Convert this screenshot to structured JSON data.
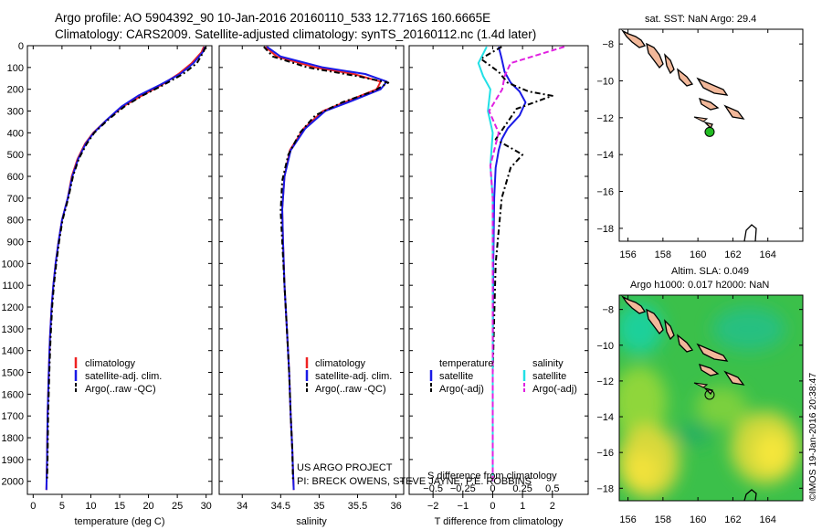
{
  "figure": {
    "title_line1": "Argo profile: AO 5904392_90 10-Jan-2016 20160110_533 12.7716S 160.6665E",
    "title_line2": "Climatology: CARS2009. Satellite-adjusted climatology: synTS_20160112.nc (1.4d later)",
    "credit_line1": "US ARGO PROJECT",
    "credit_line2": "PI: BRECK OWENS, STEVE JAYNE, P.E. ROBBINS",
    "watermark": "©IMOS 19-Jan-2016 20:38:47",
    "colors": {
      "climatology": "#ee2222",
      "satellite": "#1a1ae6",
      "argo": "#000000",
      "salinity_satellite": "#22e0e6",
      "salinity_argo": "#e020e0",
      "land": "#f2b89a",
      "marker": "#22bb22"
    }
  },
  "chart_data": [
    {
      "id": "temperature",
      "type": "line",
      "xlabel": "temperature (deg C)",
      "xlim": [
        -1,
        31
      ],
      "xticks": [
        0,
        5,
        10,
        15,
        20,
        25,
        30
      ],
      "ylim": [
        2060,
        0
      ],
      "yticks": [
        0,
        100,
        200,
        300,
        400,
        500,
        600,
        700,
        800,
        900,
        1000,
        1100,
        1200,
        1300,
        1400,
        1500,
        1600,
        1700,
        1800,
        1900,
        2000
      ],
      "legend": [
        "climatology",
        "satellite-adj. clim.",
        "Argo(..raw -QC)"
      ],
      "legend_position": "lower-middle",
      "series": [
        {
          "name": "climatology",
          "color": "#ee2222",
          "dash": "none",
          "x": [
            29.6,
            29.2,
            27.5,
            25.2,
            22.3,
            18.8,
            15.5,
            12.8,
            10.4,
            9.0,
            7.7,
            6.7,
            6.0,
            5.0,
            4.4,
            3.9,
            3.5,
            3.2,
            2.9,
            2.7,
            2.5,
            2.4,
            2.3
          ],
          "y": [
            5,
            30,
            80,
            130,
            180,
            230,
            280,
            340,
            400,
            450,
            520,
            600,
            700,
            800,
            900,
            1000,
            1100,
            1200,
            1350,
            1500,
            1700,
            1900,
            2040
          ]
        },
        {
          "name": "satellite-adj. clim.",
          "color": "#1a1ae6",
          "dash": "none",
          "x": [
            29.8,
            29.4,
            27.8,
            25.5,
            22.0,
            18.2,
            15.3,
            12.8,
            10.5,
            9.1,
            7.8,
            6.8,
            6.0,
            5.0,
            4.4,
            3.9,
            3.5,
            3.2,
            2.9,
            2.7,
            2.5,
            2.4,
            2.3
          ],
          "y": [
            5,
            30,
            80,
            130,
            180,
            230,
            280,
            340,
            400,
            450,
            520,
            600,
            700,
            800,
            900,
            1000,
            1100,
            1200,
            1350,
            1500,
            1700,
            1900,
            2040
          ]
        },
        {
          "name": "Argo(..raw -QC)",
          "color": "#000000",
          "dash": "6,3,2,3",
          "x": [
            29.9,
            29.5,
            28.4,
            26.0,
            22.6,
            18.9,
            15.8,
            13.0,
            10.6,
            9.3,
            7.9,
            6.9,
            6.1,
            5.1,
            4.5,
            4.0,
            3.6,
            3.3,
            3.0,
            2.8,
            2.6,
            2.5,
            2.4
          ],
          "y": [
            5,
            30,
            80,
            130,
            180,
            230,
            280,
            340,
            400,
            450,
            520,
            600,
            700,
            800,
            900,
            1000,
            1100,
            1200,
            1350,
            1500,
            1700,
            1900,
            2000
          ]
        }
      ]
    },
    {
      "id": "salinity",
      "type": "line",
      "xlabel": "salinity",
      "xlim": [
        33.7,
        36.1
      ],
      "xticks": [
        34,
        34.5,
        35,
        35.5,
        36
      ],
      "ylim": [
        2060,
        0
      ],
      "legend": [
        "climatology",
        "satellite-adj. clim.",
        "Argo(..raw -QC)"
      ],
      "legend_position": "lower-middle",
      "series": [
        {
          "name": "climatology",
          "color": "#ee2222",
          "dash": "none",
          "x": [
            34.3,
            34.45,
            34.95,
            35.45,
            35.8,
            35.75,
            35.4,
            35.05,
            34.8,
            34.62,
            34.55,
            34.52,
            34.53,
            34.55,
            34.58,
            34.61,
            34.63,
            34.65,
            34.66,
            34.67
          ],
          "y": [
            5,
            50,
            100,
            130,
            165,
            200,
            250,
            300,
            380,
            480,
            600,
            750,
            900,
            1100,
            1300,
            1500,
            1700,
            1850,
            1950,
            2040
          ]
        },
        {
          "name": "satellite-adj. clim.",
          "color": "#1a1ae6",
          "dash": "none",
          "x": [
            34.32,
            34.5,
            35.05,
            35.6,
            35.88,
            35.8,
            35.45,
            35.08,
            34.82,
            34.63,
            34.55,
            34.52,
            34.53,
            34.55,
            34.58,
            34.61,
            34.63,
            34.65,
            34.66,
            34.67
          ],
          "y": [
            5,
            50,
            100,
            130,
            165,
            200,
            250,
            300,
            380,
            480,
            600,
            750,
            900,
            1100,
            1300,
            1500,
            1700,
            1850,
            1950,
            2040
          ]
        },
        {
          "name": "Argo(..raw -QC)",
          "color": "#000000",
          "dash": "6,3,2,3",
          "x": [
            34.28,
            34.4,
            34.85,
            35.5,
            35.9,
            35.7,
            35.3,
            34.95,
            34.75,
            34.6,
            34.52,
            34.5,
            34.52,
            34.55,
            34.58,
            34.61,
            34.63,
            34.65,
            34.66
          ],
          "y": [
            5,
            50,
            100,
            140,
            170,
            210,
            260,
            320,
            400,
            500,
            620,
            760,
            900,
            1100,
            1300,
            1500,
            1700,
            1850,
            2000
          ]
        }
      ]
    },
    {
      "id": "difference",
      "type": "line",
      "xlabel": "T difference from climatology",
      "xlabel_top": "S difference from climatology",
      "xlim": [
        -2.8,
        3.2
      ],
      "xticks": [
        -2,
        -1,
        0,
        1,
        2
      ],
      "xlim_top": [
        -0.7,
        0.8
      ],
      "xticks_top": [
        -0.5,
        -0.25,
        0,
        0.25,
        0.5
      ],
      "ylim": [
        2060,
        0
      ],
      "legend_headers": [
        "temperature",
        "salinity"
      ],
      "legend": [
        "satellite",
        "Argo(-adj)",
        "satellite",
        "Argo(-adj)"
      ],
      "legend_position": "lower-middle",
      "series": [
        {
          "name": "temperature satellite",
          "color": "#1a1ae6",
          "dash": "none",
          "x": [
            0.2,
            0.3,
            0.4,
            0.6,
            0.9,
            1.1,
            0.9,
            0.5,
            0.3,
            0.2,
            0.1,
            0.05,
            0.02,
            0.0,
            0.0
          ],
          "y": [
            5,
            60,
            120,
            170,
            210,
            260,
            320,
            380,
            430,
            480,
            560,
            700,
            1000,
            1500,
            2000
          ]
        },
        {
          "name": "temperature Argo(-adj)",
          "color": "#000000",
          "dash": "6,3,2,3",
          "x": [
            0.3,
            -0.4,
            0.2,
            0.5,
            1.2,
            2.0,
            0.8,
            0.6,
            0.1,
            1.0,
            0.6,
            0.3,
            0.1,
            0.0,
            0.0
          ],
          "y": [
            5,
            60,
            120,
            170,
            210,
            230,
            290,
            330,
            430,
            500,
            560,
            700,
            1000,
            1500,
            2000
          ]
        },
        {
          "name": "salinity satellite",
          "color": "#22e0e6",
          "dash": "none",
          "x": [
            -0.05,
            -0.12,
            -0.08,
            -0.02,
            -0.04,
            0.0,
            -0.02,
            0.0,
            0.0,
            0.0,
            0.0,
            0.0
          ],
          "y": [
            5,
            80,
            140,
            200,
            300,
            400,
            550,
            700,
            1000,
            1400,
            1800,
            2000
          ]
        },
        {
          "name": "salinity Argo(-adj)",
          "color": "#e020e0",
          "dash": "6,3",
          "x": [
            0.6,
            0.15,
            0.1,
            0.08,
            -0.03,
            0.05,
            -0.02,
            0.0,
            0.0,
            0.0,
            0.0
          ],
          "y": [
            5,
            80,
            140,
            200,
            300,
            400,
            550,
            700,
            1000,
            1500,
            2000
          ]
        }
      ]
    },
    {
      "id": "map-sst",
      "type": "scatter",
      "title": "sat. SST: NaN Argo: 29.4",
      "xlim": [
        155.5,
        166
      ],
      "xticks": [
        156,
        158,
        160,
        162,
        164
      ],
      "ylim": [
        -18.7,
        -7.2
      ],
      "yticks": [
        -8,
        -10,
        -12,
        -14,
        -16,
        -18
      ],
      "marker": {
        "lon": 160.67,
        "lat": -12.77,
        "fill": "#22bb22"
      }
    },
    {
      "id": "map-sla",
      "type": "heatmap",
      "title_line1": "Altim. SLA: 0.049",
      "title_line2": "Argo h1000: 0.017 h2000: NaN",
      "xlim": [
        155.5,
        166
      ],
      "xticks": [
        156,
        158,
        160,
        162,
        164
      ],
      "ylim": [
        -18.7,
        -7.2
      ],
      "yticks": [
        -8,
        -10,
        -12,
        -14,
        -16,
        -18
      ],
      "marker": {
        "lon": 160.67,
        "lat": -12.77,
        "fill": "none"
      }
    }
  ]
}
